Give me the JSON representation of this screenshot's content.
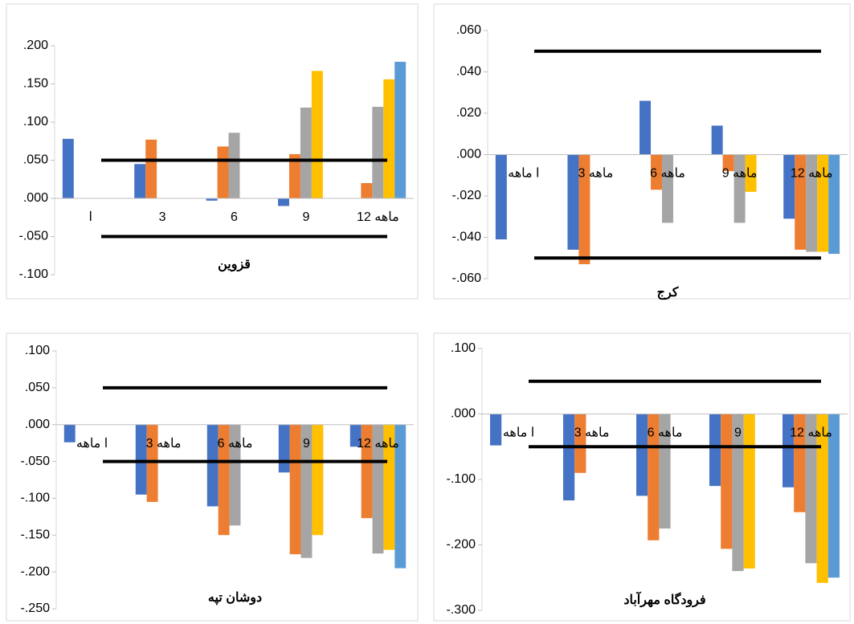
{
  "chart_data": [
    {
      "type": "bar",
      "title": "قزوین",
      "categories": [
        "ا",
        "3",
        "6",
        "9",
        "12 ماهه"
      ],
      "series": [
        {
          "color": "#4472c4",
          "values": [
            0.078,
            0.045,
            -0.003,
            -0.01,
            0
          ]
        },
        {
          "color": "#ed7d31",
          "values": [
            null,
            0.077,
            0.068,
            0.058,
            0.02
          ]
        },
        {
          "color": "#a5a5a5",
          "values": [
            null,
            null,
            0.086,
            0.119,
            0.12
          ]
        },
        {
          "color": "#ffc000",
          "values": [
            null,
            null,
            null,
            0.167,
            0.156
          ]
        },
        {
          "color": "#5b9bd5",
          "values": [
            null,
            null,
            null,
            null,
            0.179
          ]
        }
      ],
      "ylim": [
        -0.1,
        0.2
      ],
      "yticks": [
        {
          "value": 0.2,
          "label": ".200"
        },
        {
          "value": 0.15,
          "label": ".150"
        },
        {
          "value": 0.1,
          "label": ".100"
        },
        {
          "value": 0.05,
          "label": ".050"
        },
        {
          "value": 0,
          "label": ".000"
        },
        {
          "value": -0.05,
          "label": "-.050"
        },
        {
          "value": -0.1,
          "label": "-.100"
        }
      ],
      "reference_lines": [
        0.05,
        -0.05
      ],
      "reference_color": "#000000"
    },
    {
      "type": "bar",
      "title": "کرج",
      "categories": [
        "ا ماهه",
        "3 ماهه",
        "6 ماهه",
        "9 ماهه",
        "12 ماهه"
      ],
      "series": [
        {
          "color": "#4472c4",
          "values": [
            -0.041,
            -0.046,
            0.026,
            0.014,
            -0.031
          ]
        },
        {
          "color": "#ed7d31",
          "values": [
            null,
            -0.053,
            -0.017,
            -0.008,
            -0.046
          ]
        },
        {
          "color": "#a5a5a5",
          "values": [
            null,
            null,
            -0.033,
            -0.033,
            -0.047
          ]
        },
        {
          "color": "#ffc000",
          "values": [
            null,
            null,
            null,
            -0.018,
            -0.047
          ]
        },
        {
          "color": "#5b9bd5",
          "values": [
            null,
            null,
            null,
            null,
            -0.048
          ]
        }
      ],
      "ylim": [
        -0.06,
        0.06
      ],
      "yticks": [
        {
          "value": 0.06,
          "label": ".060"
        },
        {
          "value": 0.04,
          "label": ".040"
        },
        {
          "value": 0.02,
          "label": ".020"
        },
        {
          "value": 0,
          "label": ".000"
        },
        {
          "value": -0.02,
          "label": "-.020"
        },
        {
          "value": -0.04,
          "label": "-.040"
        },
        {
          "value": -0.06,
          "label": "-.060"
        }
      ],
      "reference_lines": [
        0.05,
        -0.05
      ],
      "reference_color": "#000000"
    },
    {
      "type": "bar",
      "title": "دوشان تپه",
      "categories": [
        "ا ماهه",
        "3 ماهه",
        "6 ماهه",
        "9",
        "12 ماهه"
      ],
      "series": [
        {
          "color": "#4472c4",
          "values": [
            -0.024,
            -0.095,
            -0.111,
            -0.065,
            -0.03
          ]
        },
        {
          "color": "#ed7d31",
          "values": [
            null,
            -0.105,
            -0.15,
            -0.176,
            -0.127
          ]
        },
        {
          "color": "#a5a5a5",
          "values": [
            null,
            null,
            -0.137,
            -0.181,
            -0.175
          ]
        },
        {
          "color": "#ffc000",
          "values": [
            null,
            null,
            null,
            -0.15,
            -0.17
          ]
        },
        {
          "color": "#5b9bd5",
          "values": [
            null,
            null,
            null,
            null,
            -0.195
          ]
        }
      ],
      "ylim": [
        -0.25,
        0.1
      ],
      "yticks": [
        {
          "value": 0.1,
          "label": ".100"
        },
        {
          "value": 0.05,
          "label": ".050"
        },
        {
          "value": 0,
          "label": ".000"
        },
        {
          "value": -0.05,
          "label": "-.050"
        },
        {
          "value": -0.1,
          "label": "-.100"
        },
        {
          "value": -0.15,
          "label": "-.150"
        },
        {
          "value": -0.2,
          "label": "-.200"
        },
        {
          "value": -0.25,
          "label": "-.250"
        }
      ],
      "reference_lines": [
        0.05,
        -0.05
      ],
      "reference_color": "#000000"
    },
    {
      "type": "bar",
      "title": "فرودگاه مهرآباد",
      "categories": [
        "ا ماهه",
        "3 ماهه",
        "6 ماهه",
        "9",
        "12 ماهه"
      ],
      "series": [
        {
          "color": "#4472c4",
          "values": [
            -0.048,
            -0.132,
            -0.125,
            -0.11,
            -0.112
          ]
        },
        {
          "color": "#ed7d31",
          "values": [
            null,
            -0.09,
            -0.193,
            -0.206,
            -0.15
          ]
        },
        {
          "color": "#a5a5a5",
          "values": [
            null,
            null,
            -0.175,
            -0.24,
            -0.228
          ]
        },
        {
          "color": "#ffc000",
          "values": [
            null,
            null,
            null,
            -0.236,
            -0.258
          ]
        },
        {
          "color": "#5b9bd5",
          "values": [
            null,
            null,
            null,
            null,
            -0.25
          ]
        }
      ],
      "ylim": [
        -0.3,
        0.1
      ],
      "yticks": [
        {
          "value": 0.1,
          "label": ".100"
        },
        {
          "value": 0,
          "label": ".000"
        },
        {
          "value": -0.1,
          "label": "-.100"
        },
        {
          "value": -0.2,
          "label": "-.200"
        },
        {
          "value": -0.3,
          "label": "-.300"
        }
      ],
      "reference_lines": [
        0.05,
        -0.05
      ],
      "reference_color": "#000000"
    }
  ]
}
